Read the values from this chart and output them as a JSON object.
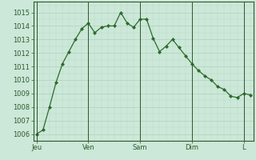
{
  "y_values": [
    1006.0,
    1006.3,
    1008.0,
    1009.8,
    1011.2,
    1012.1,
    1013.0,
    1013.8,
    1014.2,
    1013.5,
    1013.9,
    1014.0,
    1014.0,
    1015.0,
    1014.2,
    1013.9,
    1014.5,
    1014.5,
    1013.1,
    1012.1,
    1012.5,
    1013.0,
    1012.4,
    1011.8,
    1011.2,
    1010.7,
    1010.3,
    1010.0,
    1009.5,
    1009.3,
    1008.8,
    1008.7,
    1009.0,
    1008.9
  ],
  "day_ticks": [
    0,
    8,
    16,
    24,
    32
  ],
  "day_labels": [
    "Jeu",
    "Ven",
    "Sam",
    "Dim",
    "L"
  ],
  "yticks": [
    1006,
    1007,
    1008,
    1009,
    1010,
    1011,
    1012,
    1013,
    1014,
    1015
  ],
  "ylim": [
    1005.5,
    1015.8
  ],
  "xlim": [
    -0.5,
    33.5
  ],
  "line_color": "#2d6a2d",
  "marker_color": "#2d6a2d",
  "bg_color": "#cce8d8",
  "grid_color_major": "#aac8b8",
  "grid_color_minor": "#bcd8c8",
  "axis_color": "#2d5a2d",
  "spine_color": "#2d5a2d"
}
